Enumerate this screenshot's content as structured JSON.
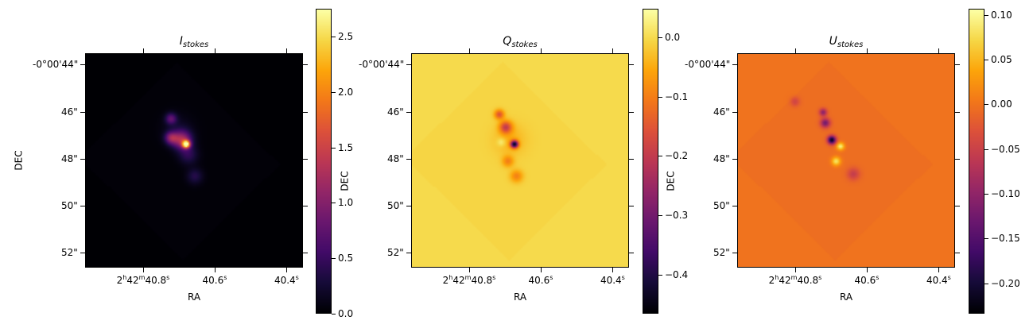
{
  "chart_data": [
    {
      "type": "heatmap",
      "title_main": "I",
      "title_sub": "stokes",
      "xlabel": "RA",
      "ylabel": "DEC",
      "colormap": "inferno",
      "xticks": [
        "2h42m40.8s",
        "40.6s",
        "40.4s"
      ],
      "yticks": [
        "-0°00'44\"",
        "46\"",
        "48\"",
        "50\"",
        "52\""
      ],
      "colorbar": {
        "range": [
          0.0,
          2.75
        ],
        "ticks": [
          0.0,
          0.5,
          1.0,
          1.5,
          2.0,
          2.5
        ],
        "tick_labels": [
          "0.0",
          "0.5",
          "1.0",
          "1.5",
          "2.0",
          "2.5"
        ]
      },
      "background_value": 0.0
    },
    {
      "type": "heatmap",
      "title_main": "Q",
      "title_sub": "stokes",
      "xlabel": "RA",
      "ylabel": "DEC",
      "colormap": "inferno",
      "xticks": [
        "2h42m40.8s",
        "40.6s",
        "40.4s"
      ],
      "yticks": [
        "-0°00'44\"",
        "46\"",
        "48\"",
        "50\"",
        "52\""
      ],
      "colorbar": {
        "range": [
          -0.466,
          0.048
        ],
        "ticks": [
          -0.4,
          -0.3,
          -0.2,
          -0.1,
          0.0
        ],
        "tick_labels": [
          "−0.4",
          "−0.3",
          "−0.2",
          "−0.1",
          "0.0"
        ]
      },
      "background_value": 0.0
    },
    {
      "type": "heatmap",
      "title_main": "U",
      "title_sub": "stokes",
      "xlabel": "RA",
      "ylabel": "DEC",
      "colormap": "inferno",
      "xticks": [
        "2h42m40.8s",
        "40.6s",
        "40.4s"
      ],
      "yticks": [
        "-0°00'44\"",
        "46\"",
        "48\"",
        "50\"",
        "52\""
      ],
      "colorbar": {
        "range": [
          -0.234,
          0.107
        ],
        "ticks": [
          -0.2,
          -0.15,
          -0.1,
          -0.05,
          0.0,
          0.05,
          0.1
        ],
        "tick_labels": [
          "−0.20",
          "−0.15",
          "−0.10",
          "−0.05",
          "0.00",
          "0.05",
          "0.10"
        ]
      },
      "background_value": 0.0
    }
  ]
}
